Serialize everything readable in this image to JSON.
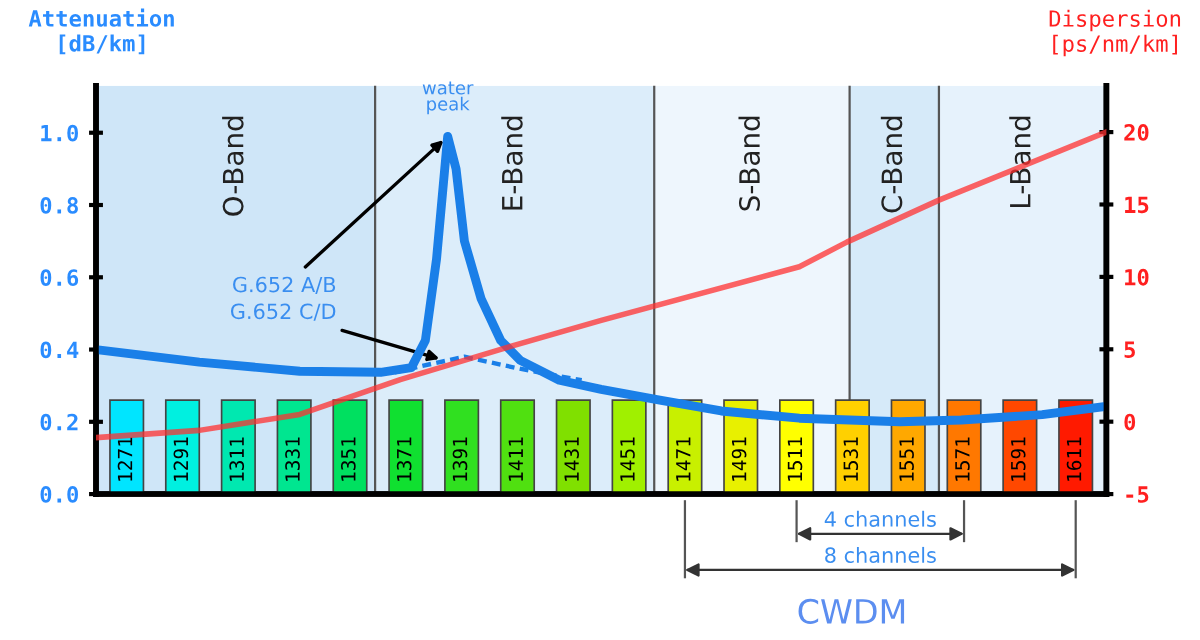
{
  "chart_data": {
    "type": "bar",
    "xlabel": "CWDM",
    "ylabel": "Attenuation\n[dB/km]",
    "y2label": "Dispersion\n[ps/nm/km]",
    "xlim": [
      1260,
      1622
    ],
    "xticks": [
      1271,
      1291,
      1311,
      1331,
      1351,
      1371,
      1391,
      1411,
      1431,
      1451,
      1471,
      1491,
      1511,
      1531,
      1551,
      1571,
      1591,
      1611
    ],
    "ylim": [
      0,
      1.13
    ],
    "yticks": [
      {
        "value": 0,
        "label": "0.0"
      },
      {
        "value": 0.2,
        "label": "0.2"
      },
      {
        "value": 0.4,
        "label": "0.4"
      },
      {
        "value": 0.6,
        "label": "0.6"
      },
      {
        "value": 0.8,
        "label": "0.8"
      },
      {
        "value": 1.0,
        "label": "1.0"
      }
    ],
    "y2lim": [
      -5,
      23.2
    ],
    "y2ticks": [
      -5,
      0,
      5,
      10,
      15,
      20
    ],
    "grid": false,
    "ref_lines": [
      {
        "axis": "x",
        "value": 1360,
        "color": "#555555"
      },
      {
        "axis": "x",
        "value": 1460,
        "color": "#555555"
      },
      {
        "axis": "x",
        "value": 1530,
        "color": "#555555"
      },
      {
        "axis": "x",
        "value": 1562,
        "color": "#555555"
      }
    ],
    "bands": [
      {
        "axis": "x",
        "from": 1260,
        "to": 1360,
        "label": "O-Band",
        "color": "#cfe6f8"
      },
      {
        "axis": "x",
        "from": 1360,
        "to": 1460,
        "label": "E-Band",
        "color": "#dcedfa"
      },
      {
        "axis": "x",
        "from": 1460,
        "to": 1530,
        "label": "S-Band",
        "color": "#eef6fd"
      },
      {
        "axis": "x",
        "from": 1530,
        "to": 1562,
        "label": "C-Band",
        "color": "#d6eaf9"
      },
      {
        "axis": "x",
        "from": 1562,
        "to": 1622,
        "label": "L-Band",
        "color": "#e6f2fc"
      }
    ],
    "series": [
      {
        "x": [
          1271,
          1291,
          1311,
          1331,
          1351,
          1371,
          1391,
          1411,
          1431,
          1451,
          1471,
          1491,
          1511,
          1531,
          1551,
          1571,
          1591,
          1611
        ],
        "values": [
          0.26,
          0.26,
          0.26,
          0.26,
          0.26,
          0.26,
          0.26,
          0.26,
          0.26,
          0.26,
          0.26,
          0.26,
          0.26,
          0.26,
          0.26,
          0.26,
          0.26,
          0.26
        ],
        "colors": [
          "#00e5ff",
          "#00f0e0",
          "#00e8b0",
          "#00e690",
          "#00e060",
          "#10e030",
          "#30e020",
          "#50e010",
          "#80e000",
          "#a0f000",
          "#c8f000",
          "#e8f000",
          "#ffff00",
          "#ffd000",
          "#ffa800",
          "#ff7800",
          "#ff4800",
          "#ff1a00"
        ]
      },
      {
        "type": "line",
        "color": "#ff3030",
        "axis": "y2",
        "line_style": "solid",
        "x": [
          1260,
          1297,
          1333,
          1369,
          1405,
          1441,
          1512,
          1529,
          1562,
          1622
        ],
        "values": [
          -1.1,
          -0.6,
          0.5,
          2.9,
          5.0,
          7.0,
          10.7,
          12.4,
          15.3,
          20.0
        ]
      },
      {
        "type": "line",
        "color": "#1a7fe8",
        "line_style": "solid",
        "x": [
          1260,
          1297,
          1333,
          1362,
          1373,
          1378,
          1382,
          1386,
          1389,
          1392,
          1398,
          1405,
          1412,
          1426,
          1441,
          1462,
          1484,
          1512,
          1548,
          1570,
          1599,
          1622
        ],
        "values": [
          0.4,
          0.365,
          0.34,
          0.337,
          0.35,
          0.425,
          0.65,
          0.99,
          0.9,
          0.7,
          0.54,
          0.425,
          0.37,
          0.315,
          0.29,
          0.26,
          0.23,
          0.21,
          0.2,
          0.205,
          0.22,
          0.243
        ]
      },
      {
        "type": "line",
        "color": "#1a7fe8",
        "line_style": "dashed",
        "x": [
          1367,
          1380,
          1392,
          1410,
          1426,
          1434
        ],
        "values": [
          0.337,
          0.36,
          0.38,
          0.35,
          0.326,
          0.315
        ]
      }
    ],
    "annotations": [
      "water peak",
      {
        "text": "G.652 A/B",
        "x": 1386,
        "y": 0.99
      },
      {
        "text": "G.652 C/D",
        "x": 1385,
        "y": 0.37
      },
      "4 channels",
      "8 channels"
    ]
  }
}
